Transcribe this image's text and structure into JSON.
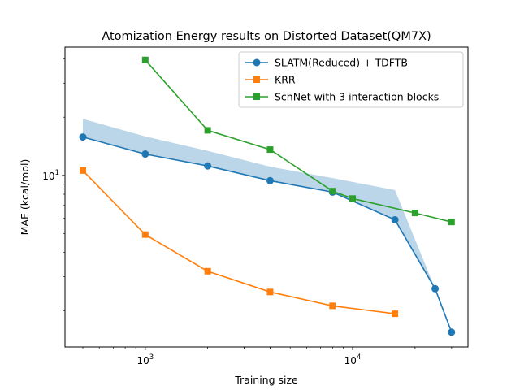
{
  "chart_data": {
    "type": "line",
    "title": "Atomization Energy results on Distorted Dataset(QM7X)",
    "xlabel": "Training size",
    "ylabel": "MAE (kcal/mol)",
    "xscale": "log",
    "yscale": "log",
    "xlim": [
      410,
      36000
    ],
    "ylim": [
      1.3,
      46
    ],
    "x_ticks": [
      {
        "value": 1000,
        "base": "10",
        "exp": "3"
      },
      {
        "value": 10000,
        "base": "10",
        "exp": "4"
      }
    ],
    "y_ticks": [
      {
        "value": 10,
        "base": "10",
        "exp": "1"
      }
    ],
    "grid": false,
    "legend_position": "top-right",
    "series": [
      {
        "name": "SLATM(Reduced) + TDFTB",
        "color": "#1f77b4",
        "marker": "circle",
        "x": [
          500,
          1000,
          2000,
          4000,
          8000,
          16000,
          25000,
          30000
        ],
        "y": [
          15.8,
          12.9,
          11.2,
          9.4,
          8.2,
          5.9,
          2.6,
          1.55
        ]
      },
      {
        "name": "KRR",
        "color": "#ff7f0e",
        "marker": "square",
        "x": [
          500,
          1000,
          2000,
          4000,
          8000,
          16000
        ],
        "y": [
          10.6,
          4.95,
          3.2,
          2.5,
          2.12,
          1.93
        ]
      },
      {
        "name": "SchNet with 3 interaction blocks",
        "color": "#2ca02c",
        "marker": "square",
        "x": [
          1000,
          2000,
          4000,
          8000,
          10000,
          20000,
          30000
        ],
        "y": [
          39.5,
          17.1,
          13.6,
          8.3,
          7.6,
          6.4,
          5.75
        ]
      }
    ],
    "band": {
      "color": "#1f77b4",
      "opacity": 0.3,
      "x": [
        500,
        1000,
        2000,
        4000,
        8000,
        16000,
        25000
      ],
      "upper": [
        19.6,
        15.9,
        13.4,
        11.1,
        9.7,
        8.4,
        2.6
      ],
      "lower": [
        15.8,
        12.9,
        11.2,
        9.4,
        8.2,
        5.9,
        2.6
      ]
    }
  }
}
